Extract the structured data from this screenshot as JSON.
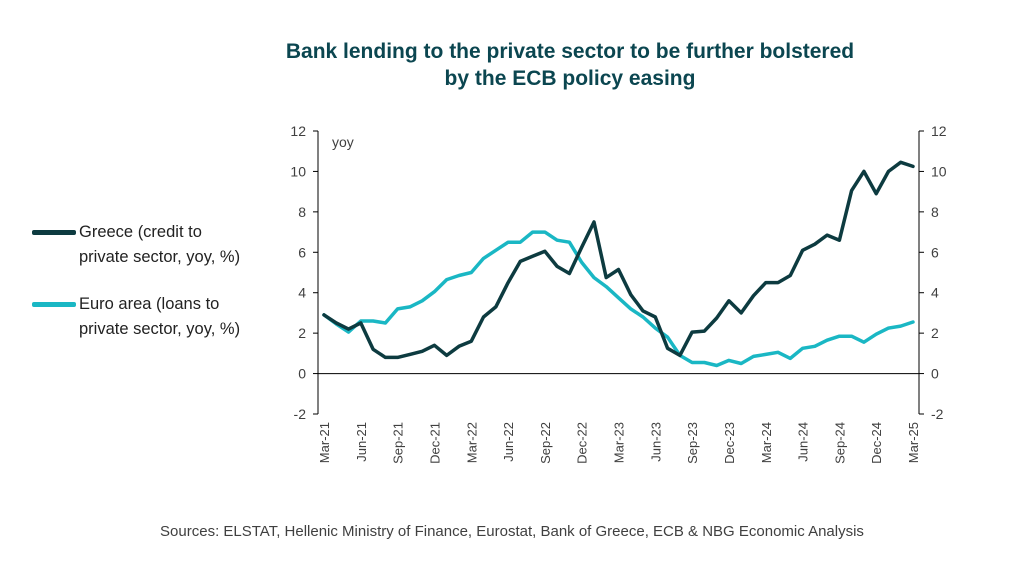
{
  "title_lines": [
    "Bank lending to the private sector to be further bolstered",
    "by the ECB policy easing"
  ],
  "sources": "Sources: ELSTAT, Hellenic Ministry of Finance, Eurostat, Bank of Greece,  ECB & NBG Economic Analysis",
  "legend": {
    "greece": [
      "Greece (credit to",
      "private sector, yoy, %)"
    ],
    "euro": [
      "Euro area (loans to",
      "private sector, yoy, %)"
    ]
  },
  "colors": {
    "greece": "#0d3b40",
    "euro": "#1ab7c4",
    "axis": "#000000",
    "text": "#404040"
  },
  "chart_data": {
    "type": "line",
    "title": "Bank lending to the private sector to be further bolstered by the ECB policy easing",
    "unit_label": "yoy",
    "ylim": [
      -2,
      12
    ],
    "yticks": [
      -2,
      0,
      2,
      4,
      6,
      8,
      10,
      12
    ],
    "y_axis_left_and_right": true,
    "grid": false,
    "legend_position": "left",
    "x_tick_labels": [
      "Mar-21",
      "Jun-21",
      "Sep-21",
      "Dec-21",
      "Mar-22",
      "Jun-22",
      "Sep-22",
      "Dec-22",
      "Mar-23",
      "Jun-23",
      "Sep-23",
      "Dec-23",
      "Mar-24",
      "Jun-24",
      "Sep-24",
      "Dec-24",
      "Mar-25"
    ],
    "x": [
      "Mar-21",
      "Apr-21",
      "May-21",
      "Jun-21",
      "Jul-21",
      "Aug-21",
      "Sep-21",
      "Oct-21",
      "Nov-21",
      "Dec-21",
      "Jan-22",
      "Feb-22",
      "Mar-22",
      "Apr-22",
      "May-22",
      "Jun-22",
      "Jul-22",
      "Aug-22",
      "Sep-22",
      "Oct-22",
      "Nov-22",
      "Dec-22",
      "Jan-23",
      "Feb-23",
      "Mar-23",
      "Apr-23",
      "May-23",
      "Jun-23",
      "Jul-23",
      "Aug-23",
      "Sep-23",
      "Oct-23",
      "Nov-23",
      "Dec-23",
      "Jan-24",
      "Feb-24",
      "Mar-24",
      "Apr-24",
      "May-24",
      "Jun-24",
      "Jul-24",
      "Aug-24",
      "Sep-24",
      "Oct-24",
      "Nov-24",
      "Dec-24",
      "Jan-25",
      "Feb-25",
      "Mar-25"
    ],
    "series": [
      {
        "name": "Greece (credit to private sector, yoy, %)",
        "values": [
          2.9,
          2.5,
          2.2,
          2.5,
          1.2,
          0.8,
          0.8,
          0.95,
          1.1,
          1.4,
          0.9,
          1.35,
          1.6,
          2.8,
          3.3,
          4.5,
          5.55,
          5.8,
          6.05,
          5.3,
          4.95,
          6.25,
          7.5,
          4.75,
          5.15,
          3.9,
          3.1,
          2.8,
          1.25,
          0.9,
          2.05,
          2.1,
          2.75,
          3.6,
          3.0,
          3.85,
          4.5,
          4.5,
          4.85,
          6.1,
          6.4,
          6.85,
          6.6,
          9.05,
          10.0,
          8.9,
          10.0,
          10.45,
          10.25
        ]
      },
      {
        "name": "Euro area (loans to private sector, yoy, %)",
        "values": [
          2.9,
          2.45,
          2.05,
          2.6,
          2.6,
          2.5,
          3.2,
          3.3,
          3.6,
          4.05,
          4.65,
          4.85,
          5.0,
          5.7,
          6.1,
          6.5,
          6.5,
          7.0,
          7.0,
          6.6,
          6.5,
          5.5,
          4.75,
          4.3,
          3.75,
          3.2,
          2.8,
          2.25,
          1.8,
          0.9,
          0.55,
          0.55,
          0.4,
          0.65,
          0.5,
          0.85,
          0.95,
          1.05,
          0.75,
          1.25,
          1.35,
          1.65,
          1.85,
          1.85,
          1.55,
          1.95,
          2.25,
          2.35,
          2.55
        ]
      }
    ]
  }
}
